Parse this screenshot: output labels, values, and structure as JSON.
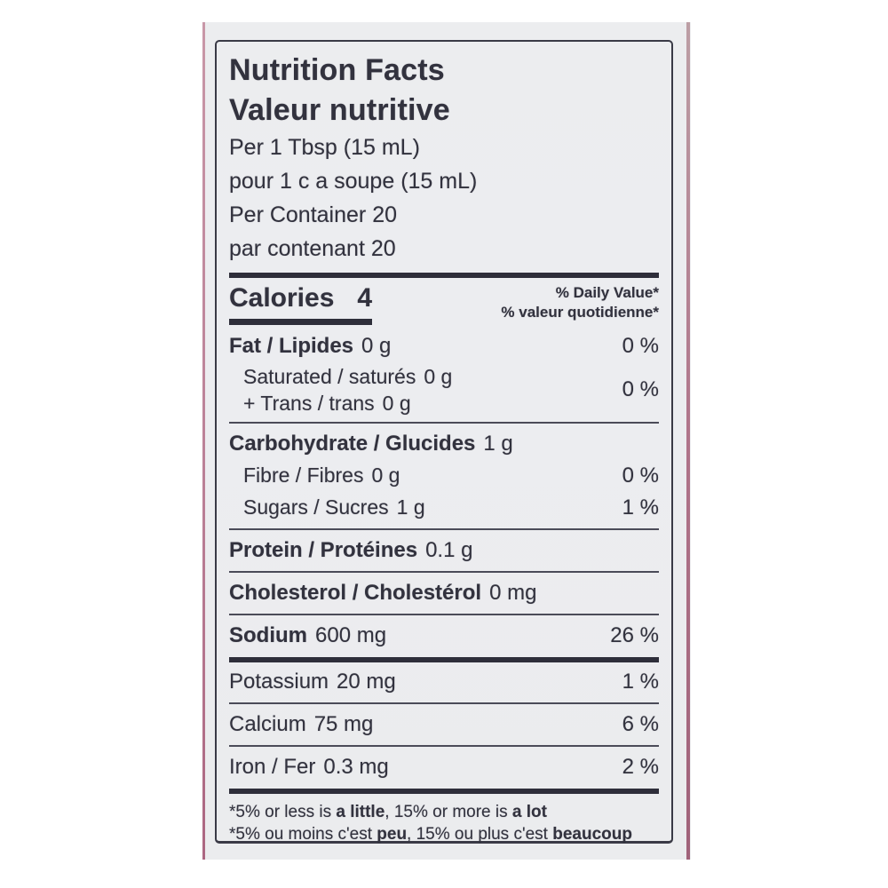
{
  "label": {
    "title_en": "Nutrition Facts",
    "title_fr": "Valeur nutritive",
    "serving_en": "Per 1 Tbsp (15 mL)",
    "serving_fr": "pour 1 c a soupe (15 mL)",
    "container_en": "Per Container 20",
    "container_fr": "par contenant 20",
    "calories_label": "Calories",
    "calories_value": "4",
    "dv_header_en": "% Daily Value*",
    "dv_header_fr": "% valeur quotidienne*",
    "nutrients": {
      "fat": {
        "name": "Fat / Lipides",
        "amount": "0 g",
        "dv": "0 %"
      },
      "saturated": {
        "name": "Saturated / saturés",
        "amount": "0 g"
      },
      "trans": {
        "name": "+ Trans / trans",
        "amount": "0 g"
      },
      "sat_trans_dv": "0 %",
      "carbohydrate": {
        "name": "Carbohydrate / Glucides",
        "amount": "1 g"
      },
      "fibre": {
        "name": "Fibre / Fibres",
        "amount": "0 g",
        "dv": "0 %"
      },
      "sugars": {
        "name": "Sugars / Sucres",
        "amount": "1 g",
        "dv": "1 %"
      },
      "protein": {
        "name": "Protein / Protéines",
        "amount": "0.1 g"
      },
      "cholesterol": {
        "name": "Cholesterol / Cholestérol",
        "amount": "0 mg"
      },
      "sodium": {
        "name": "Sodium",
        "amount": "600 mg",
        "dv": "26 %"
      },
      "potassium": {
        "name": "Potassium",
        "amount": "20 mg",
        "dv": "1 %"
      },
      "calcium": {
        "name": "Calcium",
        "amount": "75 mg",
        "dv": "6 %"
      },
      "iron": {
        "name": "Iron / Fer",
        "amount": "0.3 mg",
        "dv": "2 %"
      }
    },
    "footnote": {
      "en_parts": [
        "*5% or less is ",
        "a little",
        ", 15% or more is ",
        "a lot"
      ],
      "fr_parts": [
        "*5% ou moins c'est ",
        "peu",
        ", 15% ou plus c'est ",
        "beaucoup"
      ]
    },
    "colors": {
      "text": "#32323e",
      "panel_background": "#ecedef",
      "rule": "#2e2e3a",
      "package_edge_pink": "#a05570"
    }
  }
}
